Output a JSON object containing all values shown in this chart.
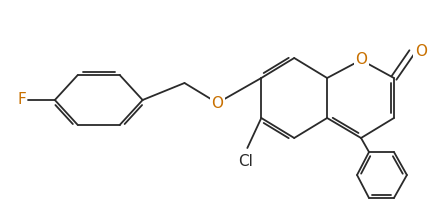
{
  "figsize": [
    4.3,
    2.19
  ],
  "dpi": 100,
  "bg": "#ffffff",
  "bond_color": "#2a2a2a",
  "atom_color_hetero": "#c87000",
  "atom_color_cl": "#2a2a2a",
  "lw": 1.3,
  "lw2": 2.2,
  "xlim": [
    0,
    430
  ],
  "ylim": [
    0,
    219
  ],
  "label_F": "F",
  "label_O1": "O",
  "label_O2": "O",
  "label_Cl": "Cl",
  "label_O_carbonyl": "O"
}
